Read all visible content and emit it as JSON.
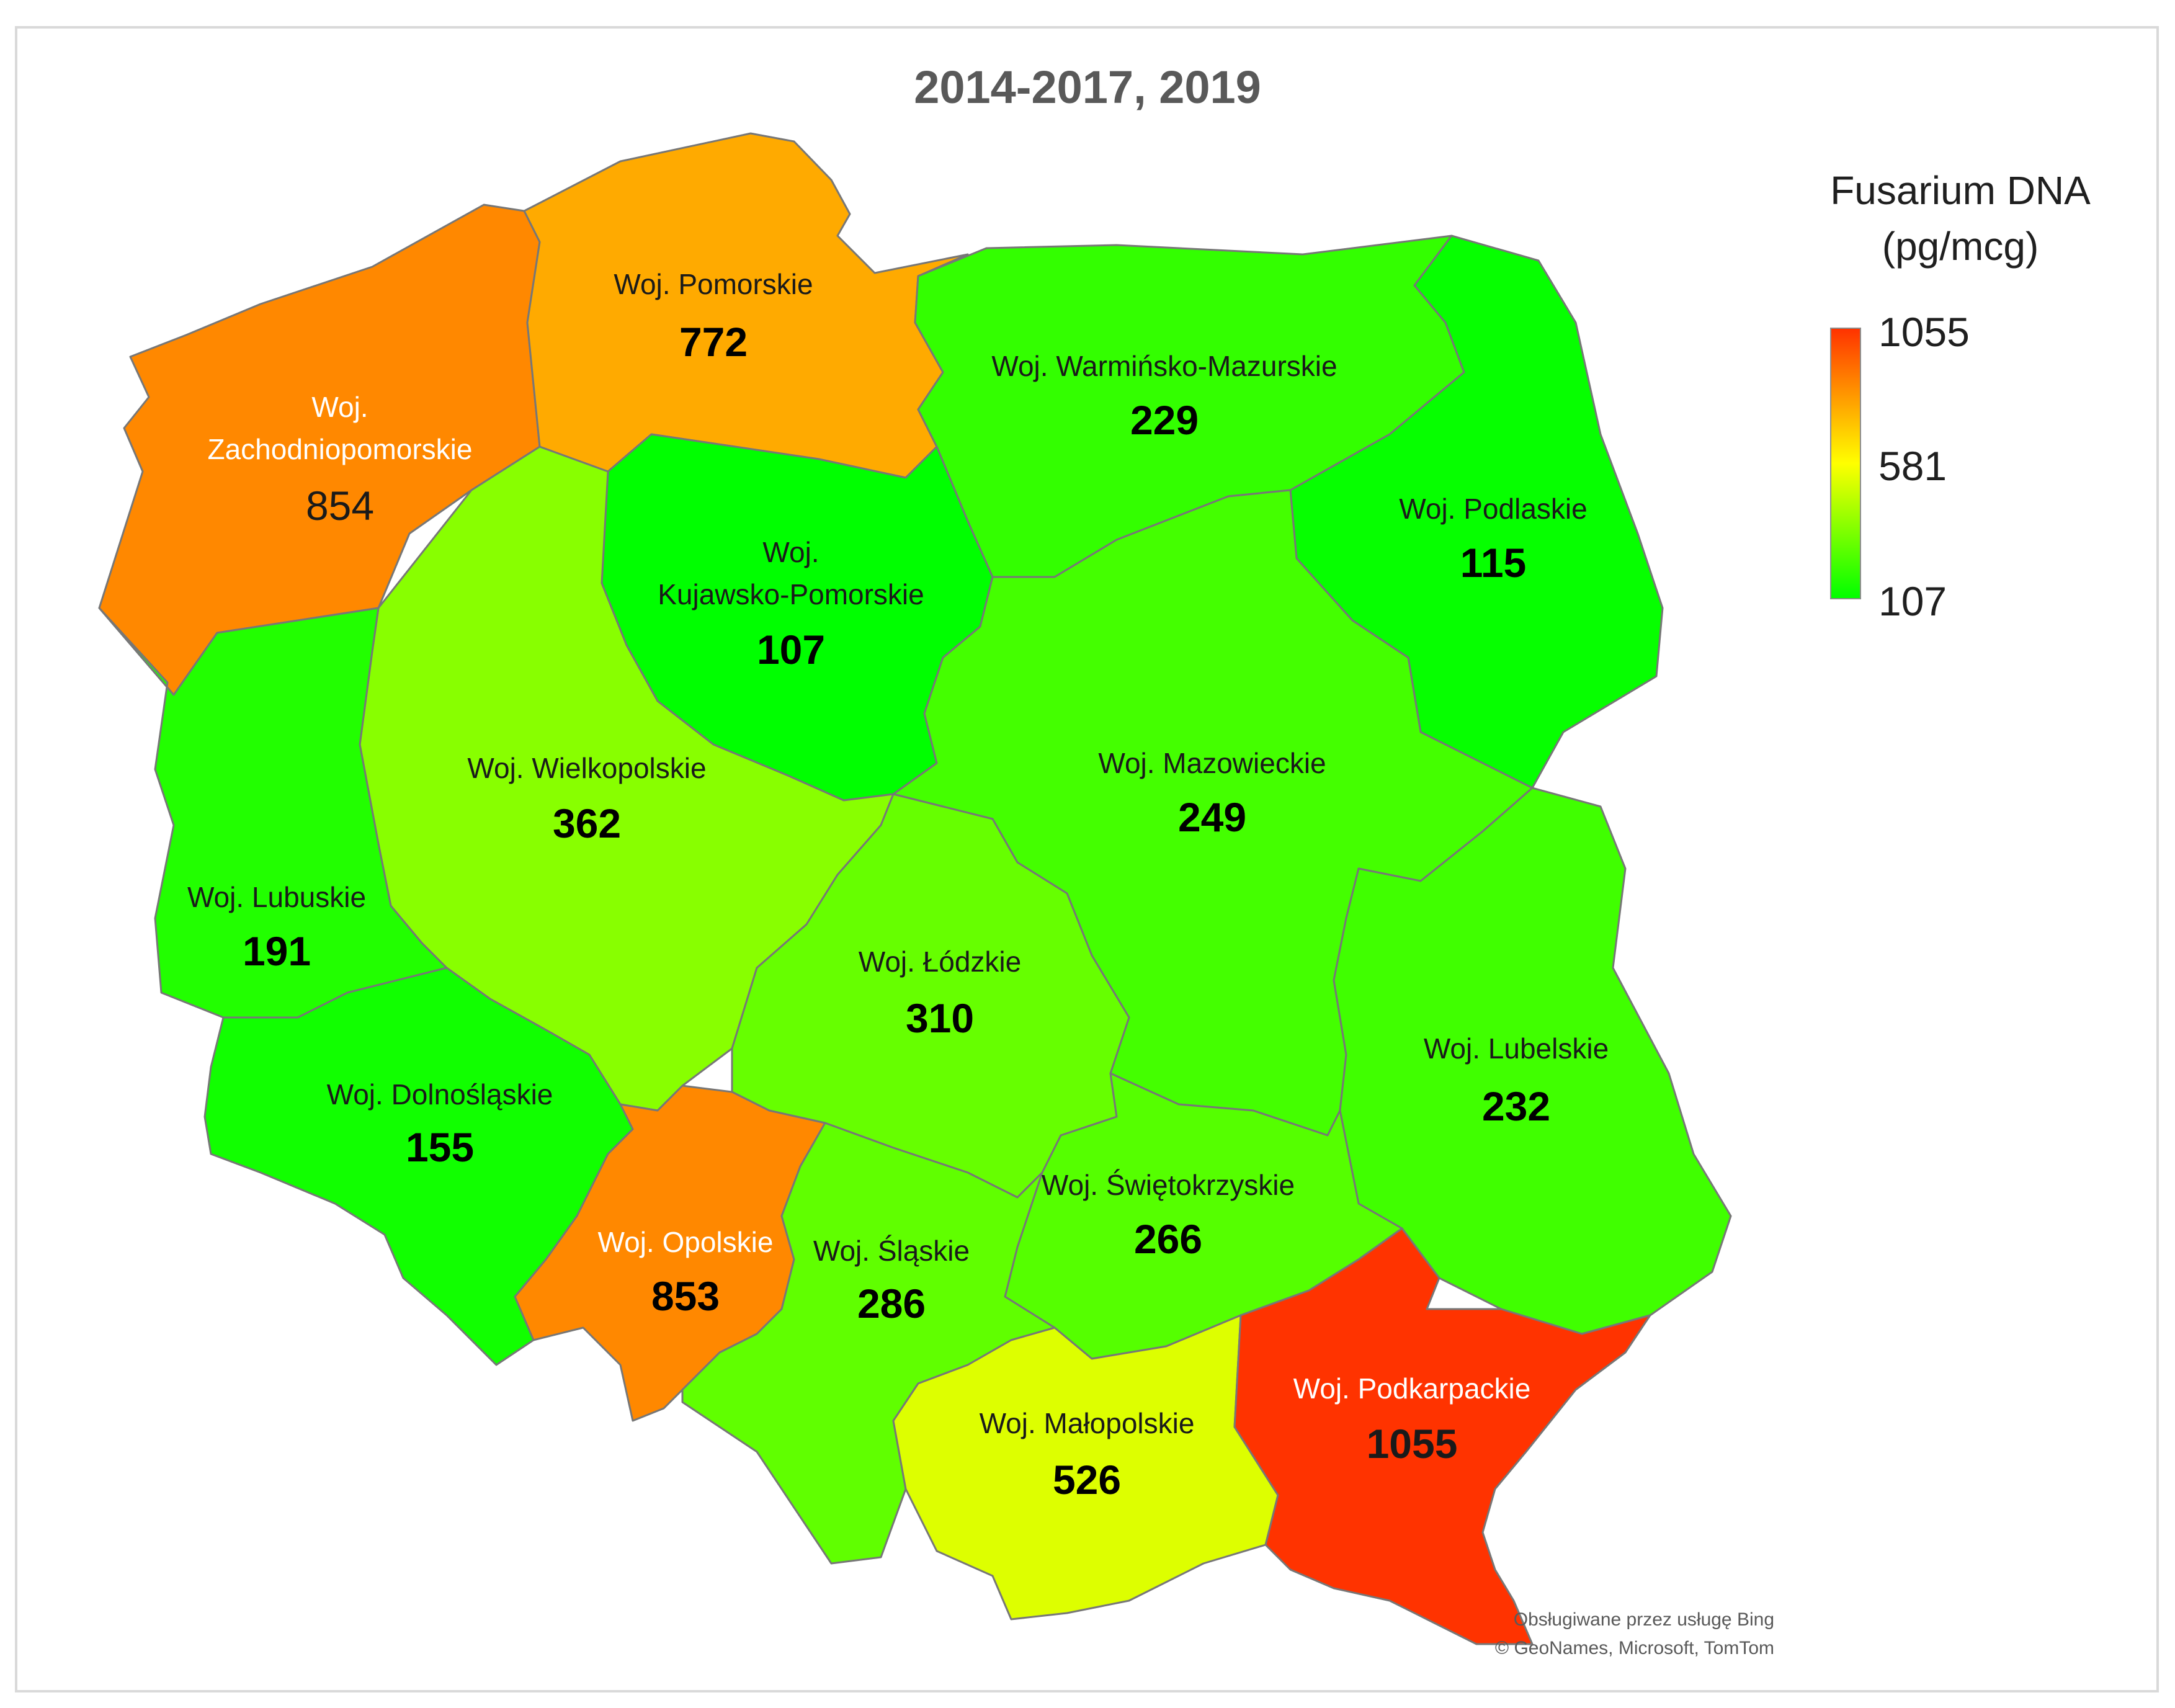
{
  "title": "2014-2017, 2019",
  "legend": {
    "title_line1": "Fusarium DNA",
    "title_line2": "(pg/mcg)",
    "max": "1055",
    "mid": "581",
    "min": "107",
    "colors": {
      "max": "#ff3300",
      "mid": "#ffff00",
      "min": "#00ff00"
    }
  },
  "regions": [
    {
      "id": "zachodniopomorskie",
      "name_line1": "Woj.",
      "name_line2": "Zachodniopomorskie",
      "value": 854,
      "value_label": "854",
      "fill": "#ff8800"
    },
    {
      "id": "pomorskie",
      "name_line1": "Woj. Pomorskie",
      "value": 772,
      "value_label": "772",
      "fill": "#ffaa00"
    },
    {
      "id": "warminsko-mazurskie",
      "name_line1": "Woj. Warmińsko-Mazurskie",
      "value": 229,
      "value_label": "229",
      "fill": "#33ff00"
    },
    {
      "id": "podlaskie",
      "name_line1": "Woj. Podlaskie",
      "value": 115,
      "value_label": "115",
      "fill": "#06ff00"
    },
    {
      "id": "kujawsko-pomorskie",
      "name_line1": "Woj.",
      "name_line2": "Kujawsko-Pomorskie",
      "value": 107,
      "value_label": "107",
      "fill": "#00ff00"
    },
    {
      "id": "wielkopolskie",
      "name_line1": "Woj. Wielkopolskie",
      "value": 362,
      "value_label": "362",
      "fill": "#88ff00"
    },
    {
      "id": "mazowieckie",
      "name_line1": "Woj. Mazowieckie",
      "value": 249,
      "value_label": "249",
      "fill": "#44ff00"
    },
    {
      "id": "lubuskie",
      "name_line1": "Woj. Lubuskie",
      "value": 191,
      "value_label": "191",
      "fill": "#22ff00"
    },
    {
      "id": "lodzkie",
      "name_line1": "Woj. Łódzkie",
      "value": 310,
      "value_label": "310",
      "fill": "#66ff00"
    },
    {
      "id": "lubelskie",
      "name_line1": "Woj. Lubelskie",
      "value": 232,
      "value_label": "232",
      "fill": "#40ff00"
    },
    {
      "id": "dolnoslaskie",
      "name_line1": "Woj. Dolnośląskie",
      "value": 155,
      "value_label": "155",
      "fill": "#11ff00"
    },
    {
      "id": "swietokrzyskie",
      "name_line1": "Woj. Świętokrzyskie",
      "value": 266,
      "value_label": "266",
      "fill": "#55ff00"
    },
    {
      "id": "opolskie",
      "name_line1": "Woj. Opolskie",
      "value": 853,
      "value_label": "853",
      "fill": "#ff8800"
    },
    {
      "id": "slaskie",
      "name_line1": "Woj. Śląskie",
      "value": 286,
      "value_label": "286",
      "fill": "#60ff00"
    },
    {
      "id": "malopolskie",
      "name_line1": "Woj. Małopolskie",
      "value": 526,
      "value_label": "526",
      "fill": "#ddff00"
    },
    {
      "id": "podkarpackie",
      "name_line1": "Woj. Podkarpackie",
      "value": 1055,
      "value_label": "1055",
      "fill": "#ff3300"
    }
  ],
  "attribution": {
    "line1": "Obsługiwane przez usługę Bing",
    "line2": "© GeoNames, Microsoft, TomTom"
  }
}
